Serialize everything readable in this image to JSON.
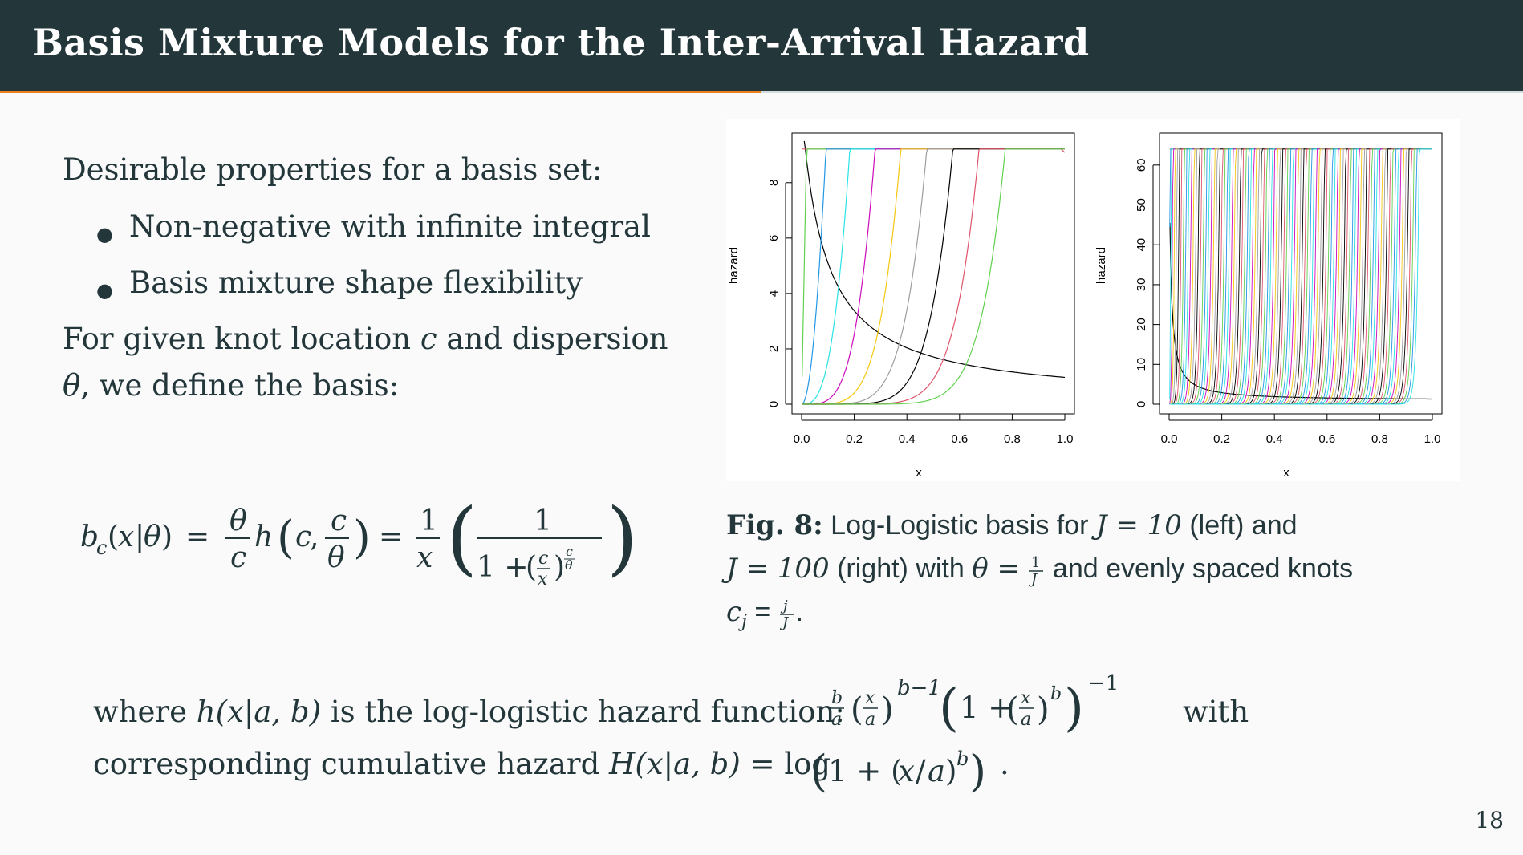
{
  "slide": {
    "title": "Basis Mixture Models for the Inter-Arrival Hazard",
    "page_number": "18",
    "intro": "Desirable properties for a basis set:",
    "bullets": [
      "Non-negative with infinite integral",
      "Basis mixture shape flexibility"
    ],
    "define_line1_pre": "For given knot location",
    "define_c": "c",
    "define_line1_post": "and dispersion",
    "define_theta": "θ",
    "define_line2_post": ", we define the basis:",
    "where_pre": "where",
    "where_h": "h(x|a, b)",
    "where_mid": "is the log-logistic hazard function:",
    "where_with": "with",
    "cumul_pre": "corresponding cumulative hazard",
    "cumul_H": "H(x|a, b)",
    "cumul_eq": "= log",
    "cumul_post": "."
  },
  "caption": {
    "label": "Fig. 8:",
    "part1": "Log-Logistic basis for",
    "j10": "J = 10",
    "part2": "(left) and",
    "j100": "J = 100",
    "part3": "(right) with",
    "theta_eq": "θ =",
    "part4": "and evenly spaced knots",
    "cj_eq": "c",
    "cj_sub": "j",
    "cj_rhs": "=",
    "end": "."
  },
  "chart_data": [
    {
      "type": "line",
      "title": "",
      "xlabel": "x",
      "ylabel": "hazard",
      "xlim": [
        0,
        1
      ],
      "ylim": [
        0,
        9.5
      ],
      "xticks": [
        "0.0",
        "0.2",
        "0.4",
        "0.6",
        "0.8",
        "1.0"
      ],
      "yticks": [
        "0",
        "2",
        "4",
        "6",
        "8"
      ],
      "J": 10,
      "theta": 0.1,
      "knots": [
        0.1,
        0.2,
        0.3,
        0.4,
        0.5,
        0.6,
        0.7,
        0.8,
        0.9,
        1.0
      ],
      "colors": [
        "#000000",
        "#df536b",
        "#61d04f",
        "#2297e6",
        "#28e2e5",
        "#cd0bbc",
        "#f5c710",
        "#9e9e9e",
        "#000000",
        "#df536b",
        "#61d04f"
      ]
    },
    {
      "type": "line",
      "title": "",
      "xlabel": "x",
      "ylabel": "hazard",
      "xlim": [
        0,
        1
      ],
      "ylim": [
        0,
        66
      ],
      "xticks": [
        "0.0",
        "0.2",
        "0.4",
        "0.6",
        "0.8",
        "1.0"
      ],
      "yticks": [
        "0",
        "10",
        "20",
        "30",
        "40",
        "50",
        "60"
      ],
      "J": 100,
      "theta": 0.01,
      "colors": [
        "#000000",
        "#df536b",
        "#61d04f",
        "#2297e6",
        "#28e2e5",
        "#cd0bbc",
        "#f5c710",
        "#9e9e9e"
      ]
    }
  ]
}
